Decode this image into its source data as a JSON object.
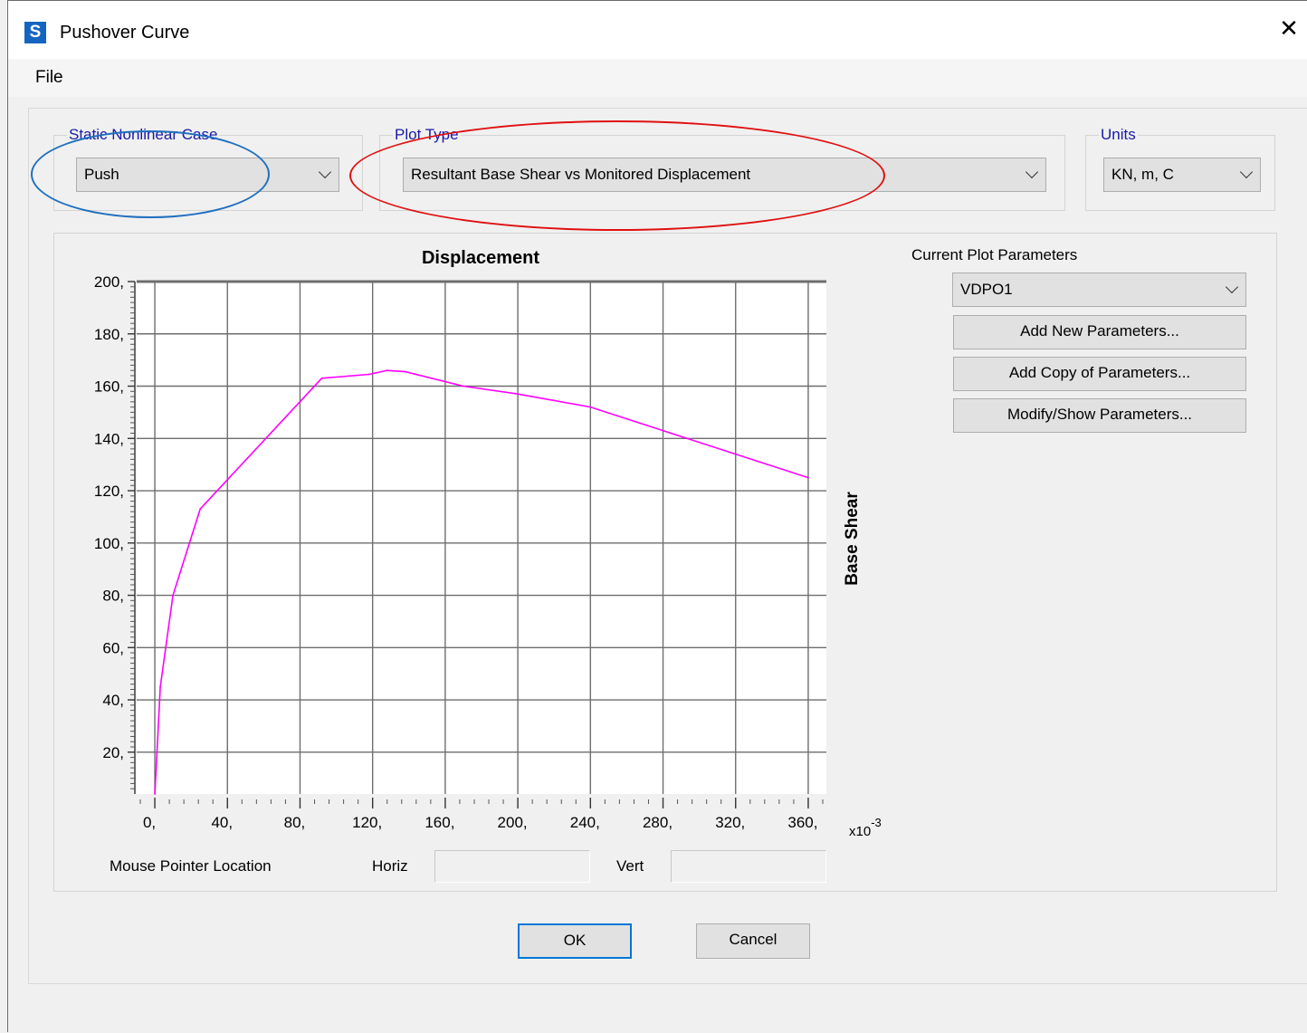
{
  "window": {
    "icon_letter": "S",
    "title": "Pushover Curve",
    "close_glyph": "✕"
  },
  "menu": {
    "file": "File"
  },
  "static_case": {
    "label": "Static Nonlinear Case",
    "value": "Push"
  },
  "plot_type": {
    "label": "Plot Type",
    "value": "Resultant Base Shear vs Monitored Displacement"
  },
  "units": {
    "label": "Units",
    "value": "KN, m, C"
  },
  "params": {
    "title": "Current Plot Parameters",
    "selected": "VDPO1",
    "add_new": "Add New Parameters...",
    "add_copy": "Add Copy of Parameters...",
    "modify": "Modify/Show Parameters..."
  },
  "pointer": {
    "label": "Mouse Pointer Location",
    "horiz_label": "Horiz",
    "vert_label": "Vert",
    "horiz_value": "",
    "vert_value": ""
  },
  "buttons": {
    "ok": "OK",
    "cancel": "Cancel"
  },
  "annotations": {
    "blue": "#1f6fbf",
    "red": "#e01010"
  },
  "chart_data": {
    "type": "line",
    "title": "Displacement",
    "ylabel": "Base Shear",
    "x_multiplier": "x10",
    "x_multiplier_exp": "-3",
    "xlim": [
      -10,
      370
    ],
    "ylim": [
      4,
      200
    ],
    "x_ticks": [
      0,
      40,
      80,
      120,
      160,
      200,
      240,
      280,
      320,
      360
    ],
    "x_tick_labels": [
      "0,",
      "40,",
      "80,",
      "120,",
      "160,",
      "200,",
      "240,",
      "280,",
      "320,",
      "360,"
    ],
    "y_ticks": [
      20,
      40,
      60,
      80,
      100,
      120,
      140,
      160,
      180,
      200
    ],
    "y_tick_labels": [
      "20,",
      "40,",
      "60,",
      "80,",
      "100,",
      "120,",
      "140,",
      "160,",
      "180,",
      "200,"
    ],
    "grid": true,
    "series": [
      {
        "color": "#ff00ff",
        "x": [
          0,
          3,
          10,
          25,
          92,
          118,
          128,
          138,
          170,
          200,
          240,
          280,
          320,
          360
        ],
        "y": [
          4,
          45,
          80,
          113,
          163,
          164.5,
          166,
          165.5,
          160,
          157,
          152,
          143,
          134,
          125
        ]
      }
    ]
  }
}
